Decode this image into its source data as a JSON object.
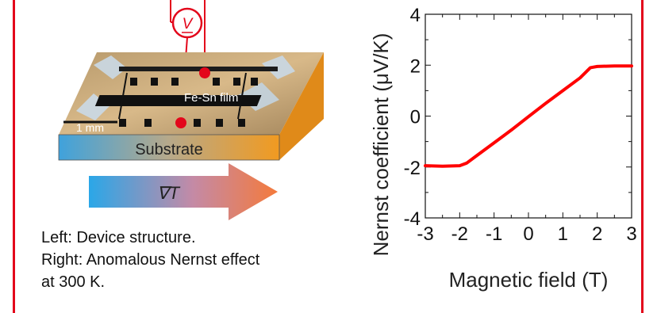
{
  "figure": {
    "labels": {
      "voltmeter": "V",
      "film": "Fe-Sn film",
      "scale": "1 mm",
      "substrate": "Substrate",
      "gradient": "∇T"
    },
    "caption": {
      "line1": "Left: Device structure.",
      "line2": "Right: Anomalous Nernst effect",
      "line3": "at 300 K."
    },
    "colors": {
      "frame": "#e3061b",
      "curve": "#ff0000",
      "probe": "#e3061b",
      "gradient_cold": "#2aa7e8",
      "gradient_hot": "#f47a3c",
      "substrate_cold": "#3fa2dc",
      "substrate_hot": "#f19a20"
    }
  },
  "chart_data": {
    "type": "line",
    "xlabel": "Magnetic field (T)",
    "ylabel": "Nernst coefficient (μV/K)",
    "xlim": [
      -3,
      3
    ],
    "ylim": [
      -4,
      4
    ],
    "xticks": [
      -3,
      -2,
      -1,
      0,
      1,
      2,
      3
    ],
    "yticks": [
      -4,
      -2,
      0,
      2,
      4
    ],
    "x_tick_labels": [
      "-3",
      "-2",
      "-1",
      "0",
      "1",
      "2",
      "3"
    ],
    "y_tick_labels": [
      "-4",
      "-2",
      "0",
      "2",
      "4"
    ],
    "grid": false,
    "series": [
      {
        "x": [
          -3.0,
          -2.5,
          -2.0,
          -1.8,
          -1.5,
          -1.0,
          -0.5,
          0.0,
          0.5,
          1.0,
          1.5,
          1.8,
          2.0,
          2.5,
          3.0
        ],
        "y": [
          -1.95,
          -1.97,
          -1.95,
          -1.85,
          -1.55,
          -1.05,
          -0.55,
          -0.02,
          0.5,
          1.0,
          1.5,
          1.9,
          1.95,
          1.97,
          1.97
        ]
      }
    ]
  }
}
